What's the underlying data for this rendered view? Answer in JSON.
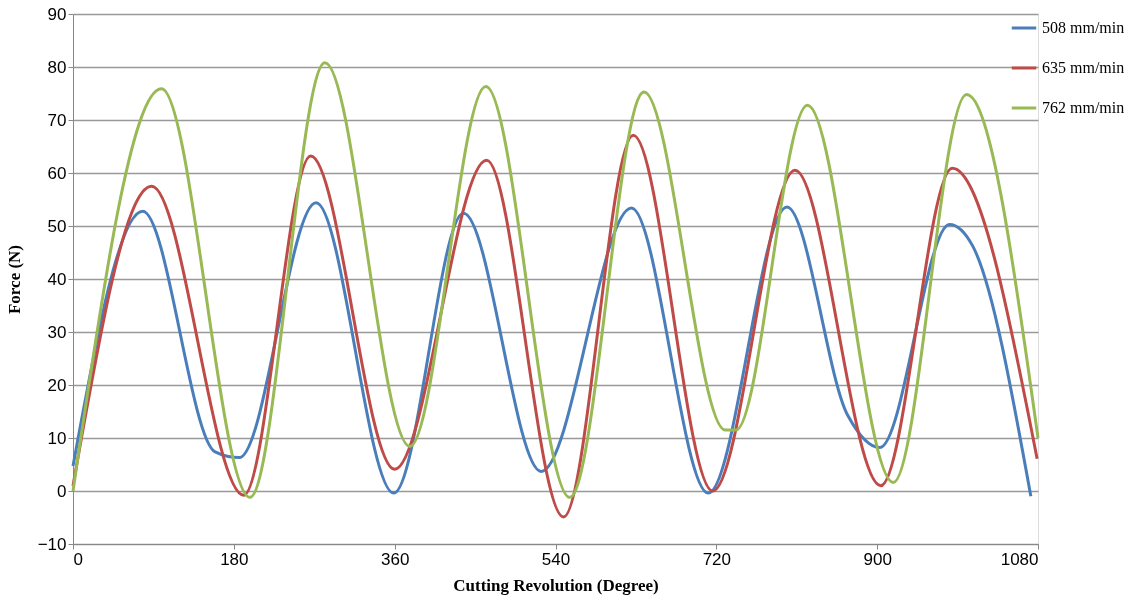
{
  "chart_data": {
    "type": "line",
    "xlabel": "Cutting Revolution (Degree)",
    "ylabel": "Force (N)",
    "xlim": [
      0,
      1080
    ],
    "xticks": [
      0,
      180,
      360,
      540,
      720,
      900,
      1080
    ],
    "ylim": [
      -10,
      90
    ],
    "yticks": [
      -10,
      0,
      10,
      20,
      30,
      40,
      50,
      60,
      70,
      80,
      90
    ],
    "grid": "y",
    "legend": "top right",
    "line_style": "solid",
    "marker": "none",
    "series": [
      {
        "name": "508 mm/min",
        "color": "#4a7ebb",
        "x": [
          0,
          78,
          159,
          186,
          272,
          359,
          437,
          524,
          625,
          711,
          799,
          867,
          903,
          981,
          1007,
          1072
        ],
        "values": [
          4.7,
          52.8,
          7.4,
          6.3,
          54.4,
          -0.4,
          52.4,
          3.7,
          53.4,
          -0.4,
          53.6,
          14.3,
          8.2,
          50.3,
          46.2,
          -1
        ]
      },
      {
        "name": "635 mm/min",
        "color": "#be4b48",
        "x": [
          0,
          88,
          191,
          266,
          360,
          463,
          549,
          627,
          716,
          808,
          904,
          984,
          1079
        ],
        "values": [
          1.0,
          57.5,
          -0.8,
          63.2,
          4.1,
          62.4,
          -4.9,
          67.1,
          0,
          60.5,
          1.0,
          60.9,
          6.1
        ]
      },
      {
        "name": "762 mm/min",
        "color": "#98b954",
        "x": [
          0,
          99,
          198,
          282,
          377,
          462,
          556,
          639,
          730,
          742,
          822,
          918,
          1000,
          1080
        ],
        "values": [
          0,
          75.9,
          -1.2,
          80.8,
          8.4,
          76.3,
          -1.2,
          75.3,
          11.5,
          11.5,
          72.8,
          1.6,
          74.8,
          10.0
        ]
      }
    ]
  }
}
